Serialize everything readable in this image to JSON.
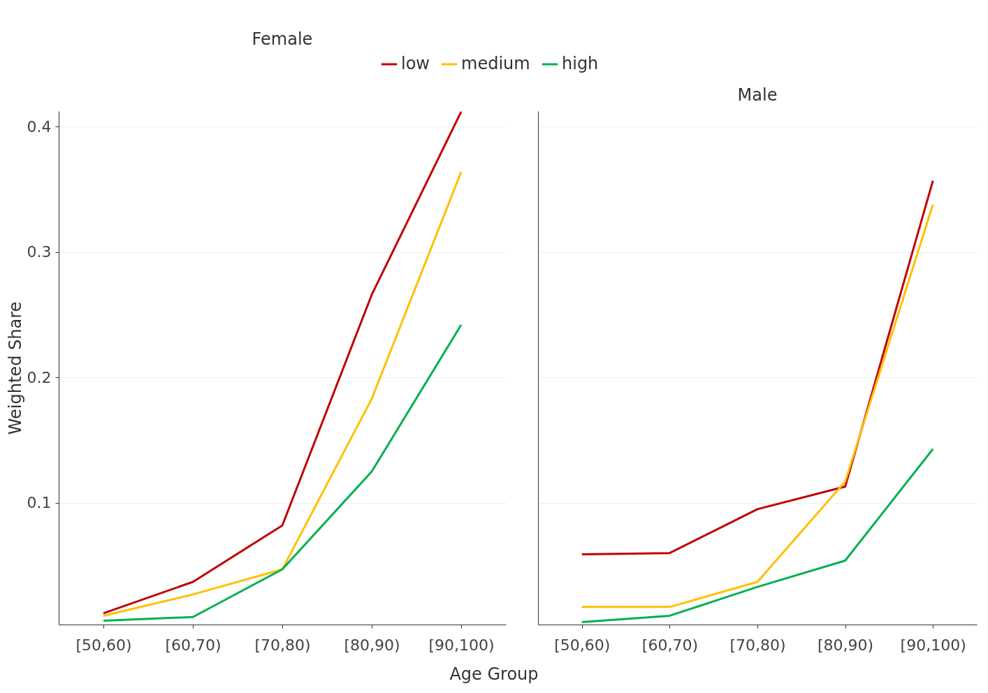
{
  "chart_data": [
    {
      "type": "line",
      "title": "Female",
      "xlabel": "Age Group",
      "ylabel": "Weighted Share",
      "categories": [
        "[50,60)",
        "[60,70)",
        "[70,80)",
        "[80,90)",
        "[90,100)"
      ],
      "series": [
        {
          "name": "low",
          "color": "#c00000",
          "values": [
            0.012,
            0.037,
            0.082,
            0.266,
            0.412
          ]
        },
        {
          "name": "medium",
          "color": "#ffc000",
          "values": [
            0.01,
            0.027,
            0.047,
            0.183,
            0.364
          ]
        },
        {
          "name": "high",
          "color": "#00b050",
          "values": [
            0.006,
            0.009,
            0.047,
            0.125,
            0.242
          ]
        }
      ],
      "ylim": [
        0.003,
        0.4125
      ],
      "yticks": [
        0.1,
        0.2,
        0.3,
        0.4
      ],
      "grid": "y",
      "legend": "top"
    },
    {
      "type": "line",
      "title": "Male",
      "categories": [
        "[50,60)",
        "[60,70)",
        "[70,80)",
        "[80,90)",
        "[90,100)"
      ],
      "series": [
        {
          "color": "#c00000",
          "values": [
            0.059,
            0.06,
            0.095,
            0.113,
            0.357
          ]
        },
        {
          "color": "#ffc000",
          "values": [
            0.017,
            0.017,
            0.037,
            0.117,
            0.338
          ]
        },
        {
          "color": "#00b050",
          "values": [
            0.005,
            0.01,
            0.033,
            0.054,
            0.143
          ]
        }
      ],
      "ylim": [
        0.003,
        0.4125
      ],
      "yticks": [
        0.1,
        0.2,
        0.3,
        0.4
      ],
      "grid": "y",
      "tick_labels": "x"
    }
  ]
}
